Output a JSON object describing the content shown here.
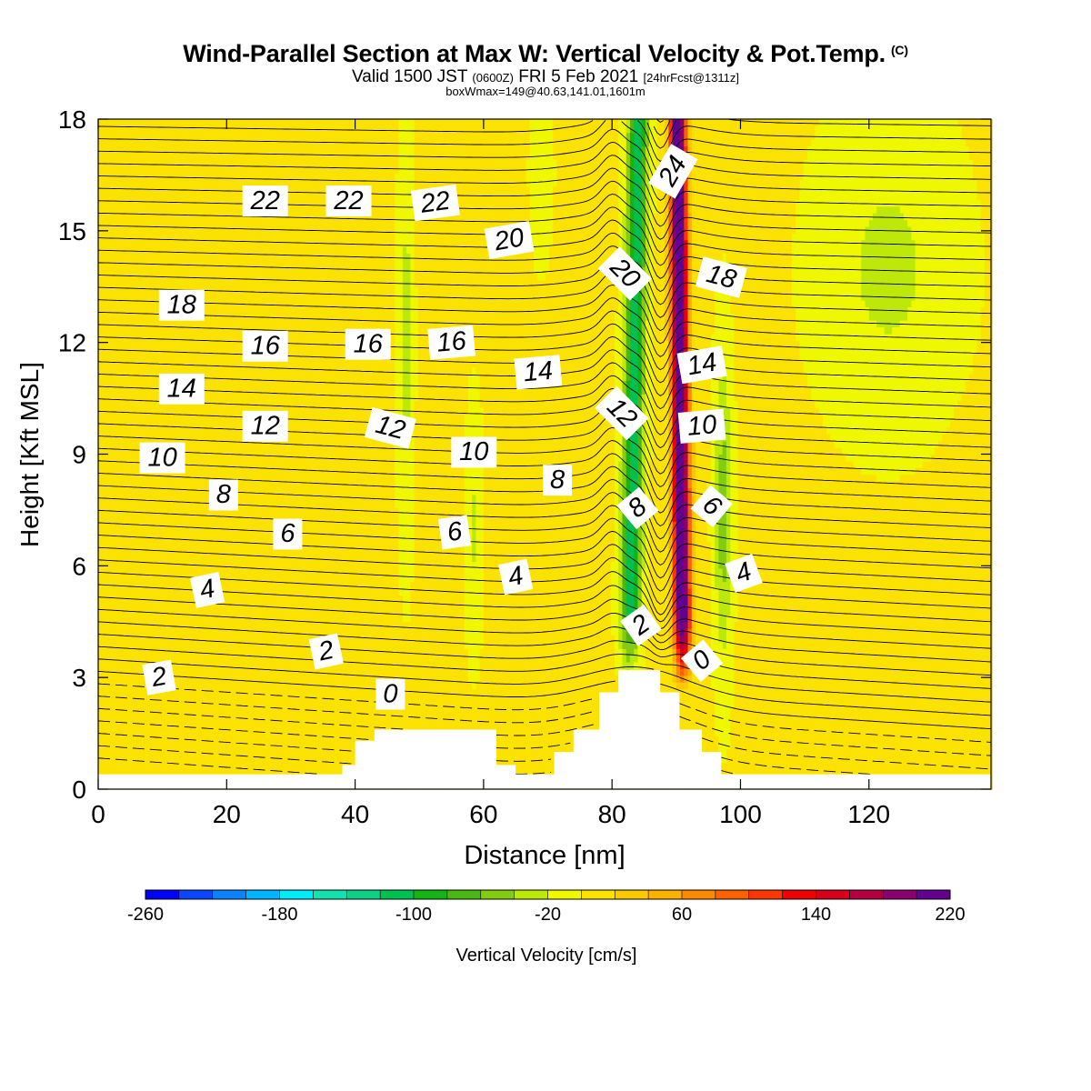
{
  "title": {
    "main": "Wind-Parallel Section at Max W: Vertical Velocity & Pot.Temp.",
    "copyright": "(C)",
    "valid_prefix": "Valid 1500 JST",
    "valid_utc": "(0600Z)",
    "valid_date": "FRI 5 Feb 2021",
    "forecast_info": "[24hrFcst@1311z]",
    "box_info": "boxWmax=149@40.63,141.01,1601m"
  },
  "chart_data": {
    "type": "heatmap",
    "description_free": true,
    "xlabel": "Distance [nm]",
    "ylabel": "Height [Kft MSL]",
    "xlim": [
      0,
      139
    ],
    "ylim": [
      0,
      18
    ],
    "x_ticks": [
      0,
      20,
      40,
      60,
      80,
      100,
      120
    ],
    "y_ticks": [
      0,
      3,
      6,
      9,
      12,
      15,
      18
    ],
    "colorbar": {
      "label": "Vertical Velocity [cm/s]",
      "range": [
        -260,
        240
      ],
      "step": 20,
      "tick_labels": [
        "-260",
        "-180",
        "-100",
        "-20",
        "60",
        "140",
        "220"
      ],
      "colors": [
        "#0000ff",
        "#0a46ff",
        "#0d82ff",
        "#00b4ff",
        "#00ecf8",
        "#15e0b0",
        "#10d087",
        "#00c050",
        "#14b414",
        "#4ab814",
        "#84cc12",
        "#bce80a",
        "#f0f800",
        "#fce200",
        "#fcc800",
        "#fcb000",
        "#fc8a00",
        "#fc6200",
        "#fc3600",
        "#f00000",
        "#d80018",
        "#b40040",
        "#8a006c",
        "#620090"
      ]
    },
    "terrain_kft": [
      [
        0,
        0.4
      ],
      [
        38,
        0.4
      ],
      [
        38,
        0.65
      ],
      [
        40,
        0.65
      ],
      [
        40,
        1.3
      ],
      [
        43,
        1.3
      ],
      [
        43,
        1.6
      ],
      [
        62,
        1.6
      ],
      [
        62,
        0.65
      ],
      [
        65,
        0.65
      ],
      [
        65,
        0.4
      ],
      [
        71,
        0.4
      ],
      [
        71,
        1.0
      ],
      [
        74,
        1.0
      ],
      [
        74,
        1.6
      ],
      [
        78,
        1.6
      ],
      [
        78,
        2.6
      ],
      [
        81,
        2.6
      ],
      [
        81,
        3.2
      ],
      [
        87.5,
        3.2
      ],
      [
        87.5,
        2.6
      ],
      [
        90.5,
        2.6
      ],
      [
        90.5,
        1.6
      ],
      [
        94,
        1.6
      ],
      [
        94,
        1.0
      ],
      [
        97,
        1.0
      ],
      [
        97,
        0.4
      ],
      [
        139,
        0.4
      ]
    ],
    "contour_labels": [
      {
        "text": "2",
        "x": 9.5,
        "y": 3.0,
        "rot": -10
      },
      {
        "text": "2",
        "x": 35.5,
        "y": 3.7,
        "rot": -12
      },
      {
        "text": "0",
        "x": 45.5,
        "y": 2.55,
        "rot": 0
      },
      {
        "text": "4",
        "x": 17,
        "y": 5.35,
        "rot": -12
      },
      {
        "text": "4",
        "x": 65,
        "y": 5.7,
        "rot": -12
      },
      {
        "text": "6",
        "x": 29.5,
        "y": 6.85,
        "rot": 0
      },
      {
        "text": "6",
        "x": 55.5,
        "y": 6.9,
        "rot": -8
      },
      {
        "text": "8",
        "x": 19.5,
        "y": 7.9,
        "rot": 0
      },
      {
        "text": "8",
        "x": 71.5,
        "y": 8.3,
        "rot": 0
      },
      {
        "text": "10",
        "x": 10,
        "y": 8.9,
        "rot": 0
      },
      {
        "text": "10",
        "x": 58.5,
        "y": 9.05,
        "rot": 0
      },
      {
        "text": "12",
        "x": 26,
        "y": 9.75,
        "rot": 0
      },
      {
        "text": "12",
        "x": 45.5,
        "y": 9.7,
        "rot": 15
      },
      {
        "text": "14",
        "x": 13,
        "y": 10.75,
        "rot": 0
      },
      {
        "text": "14",
        "x": 68.5,
        "y": 11.2,
        "rot": -5
      },
      {
        "text": "16",
        "x": 26,
        "y": 11.9,
        "rot": 0
      },
      {
        "text": "16",
        "x": 42,
        "y": 11.95,
        "rot": 0
      },
      {
        "text": "16",
        "x": 55,
        "y": 12.0,
        "rot": -5
      },
      {
        "text": "18",
        "x": 13,
        "y": 13.0,
        "rot": 0
      },
      {
        "text": "20",
        "x": 64,
        "y": 14.75,
        "rot": -10
      },
      {
        "text": "22",
        "x": 26,
        "y": 15.8,
        "rot": 0
      },
      {
        "text": "22",
        "x": 39,
        "y": 15.8,
        "rot": 0
      },
      {
        "text": "22",
        "x": 52.5,
        "y": 15.75,
        "rot": -8
      },
      {
        "text": "20",
        "x": 82,
        "y": 13.85,
        "rot": 45
      },
      {
        "text": "12",
        "x": 81.5,
        "y": 10.1,
        "rot": 45
      },
      {
        "text": "8",
        "x": 84,
        "y": 7.55,
        "rot": -40
      },
      {
        "text": "2",
        "x": 84.5,
        "y": 4.4,
        "rot": -35
      },
      {
        "text": "24",
        "x": 89.5,
        "y": 16.6,
        "rot": -60
      },
      {
        "text": "18",
        "x": 97,
        "y": 13.75,
        "rot": 15
      },
      {
        "text": "14",
        "x": 94,
        "y": 11.4,
        "rot": -10
      },
      {
        "text": "10",
        "x": 94,
        "y": 9.75,
        "rot": -5
      },
      {
        "text": "6",
        "x": 95.5,
        "y": 7.6,
        "rot": 40
      },
      {
        "text": "4",
        "x": 100.5,
        "y": 5.8,
        "rot": -20
      },
      {
        "text": "0",
        "x": 94,
        "y": 3.45,
        "rot": -40
      }
    ]
  }
}
